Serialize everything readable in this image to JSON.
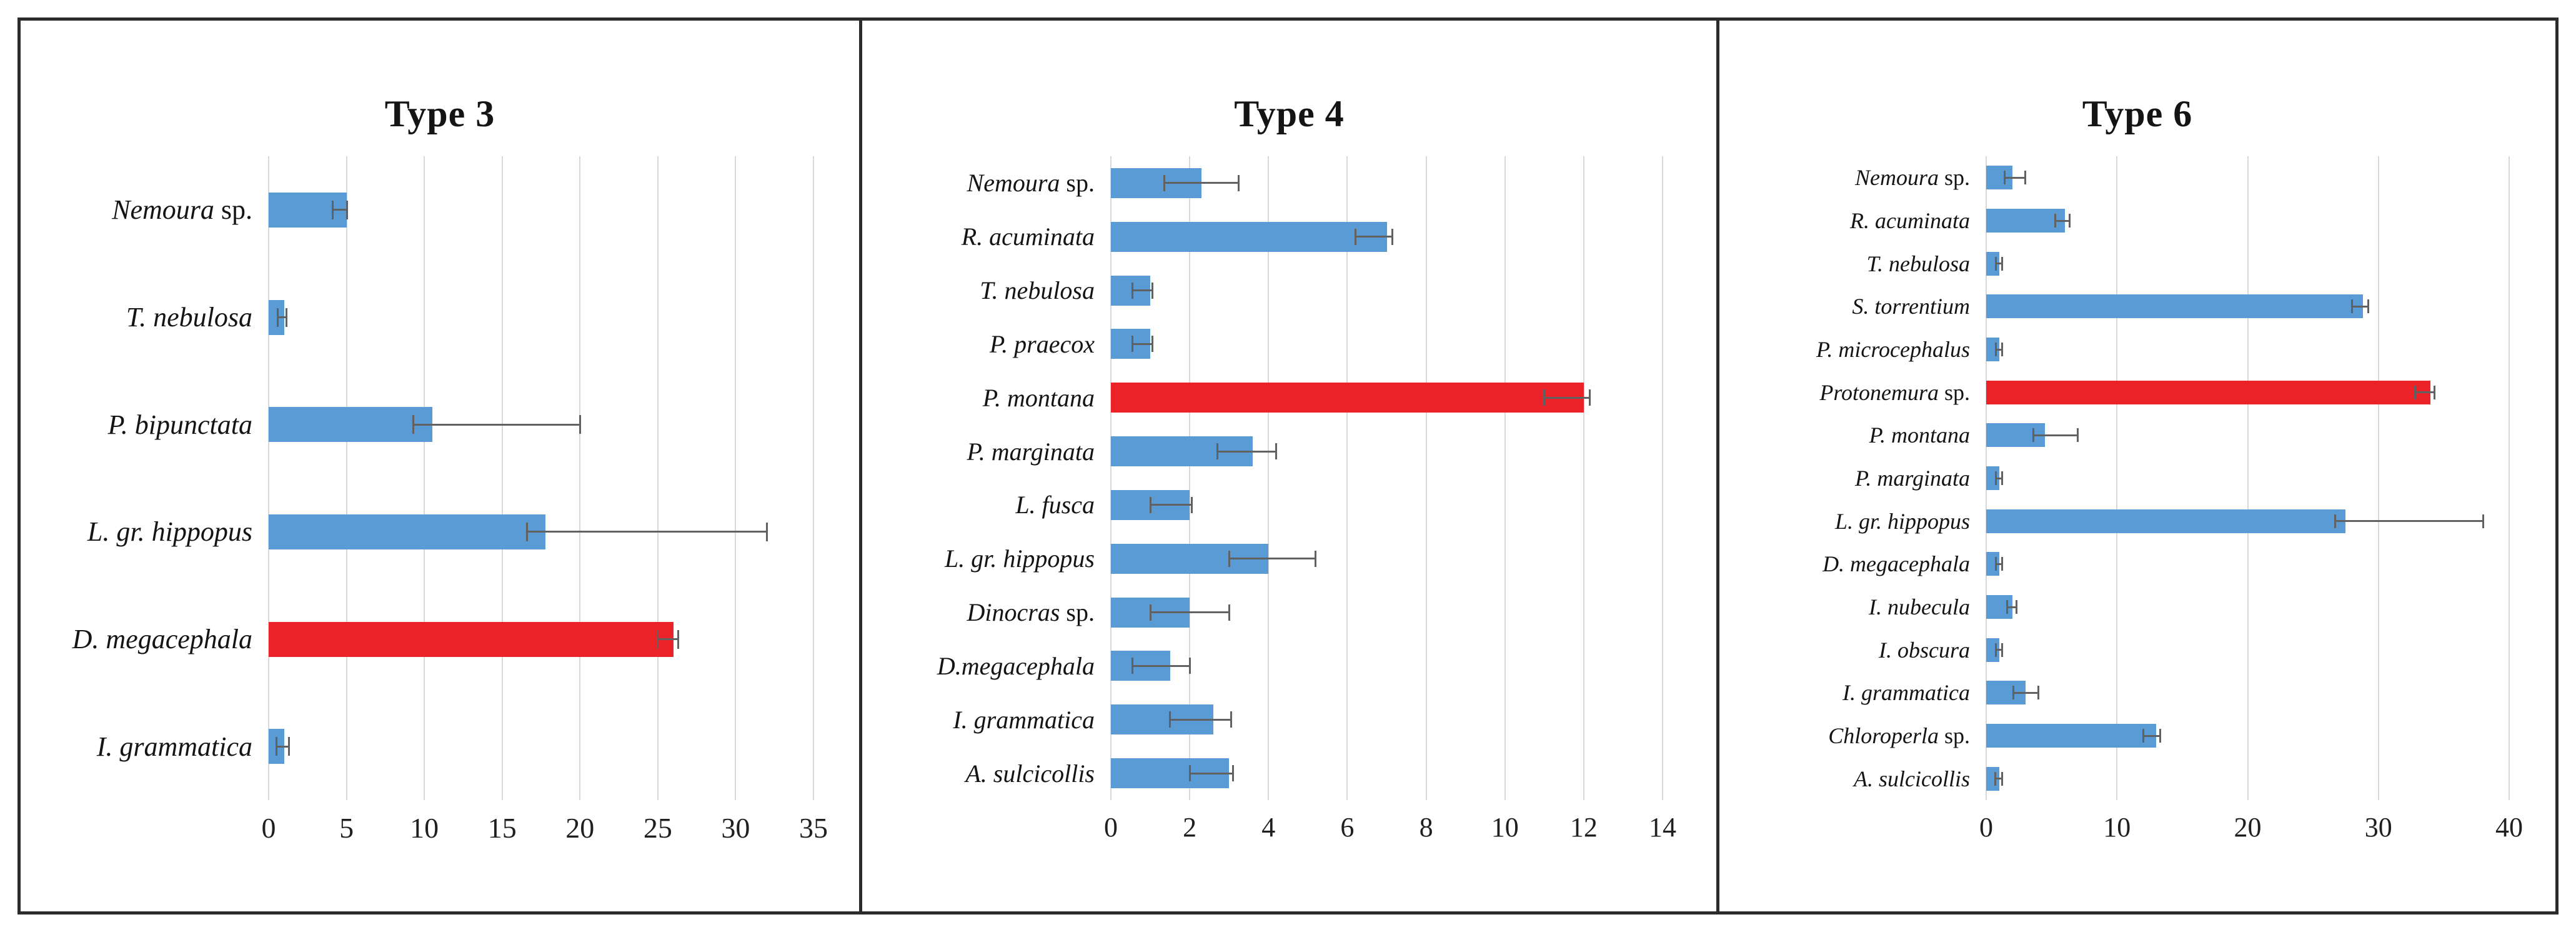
{
  "figure": {
    "colors": {
      "bar_blue": "#5B9BD5",
      "bar_red": "#EB2227",
      "gridline": "#D9D9D9",
      "error_bar": "#616161",
      "border": "#2B2B2B",
      "text": "#141414"
    }
  },
  "chart_data": [
    {
      "type": "bar",
      "orientation": "horizontal",
      "title": "Type 3",
      "bar_color": "#5B9BD5",
      "highlight_color": "#EB2227",
      "highlight_index": 4,
      "xlim": [
        0,
        35
      ],
      "xticks": [
        0,
        5,
        10,
        15,
        20,
        25,
        30,
        35
      ],
      "grid": true,
      "legend": false,
      "categories": [
        "Nemoura sp.",
        "T. nebulosa",
        "P. bipunctata",
        "L. gr. hippopus",
        "D. megacephala",
        "I. grammatica"
      ],
      "values": [
        5,
        1,
        10.5,
        17.8,
        26,
        1
      ],
      "whisker_min": [
        4.1,
        0.6,
        9.3,
        16.6,
        25,
        0.5
      ],
      "whisker_max": [
        5.05,
        1.15,
        20,
        32,
        26.3,
        1.3
      ]
    },
    {
      "type": "bar",
      "orientation": "horizontal",
      "title": "Type 4",
      "bar_color": "#5B9BD5",
      "highlight_color": "#EB2227",
      "highlight_index": 4,
      "xlim": [
        0,
        14
      ],
      "xticks": [
        0,
        2,
        4,
        6,
        8,
        10,
        12,
        14
      ],
      "grid": true,
      "legend": false,
      "categories": [
        "Nemoura sp.",
        "R. acuminata",
        "T. nebulosa",
        "P. praecox",
        "P. montana",
        "P. marginata",
        "L. fusca",
        "L. gr. hippopus",
        "Dinocras sp.",
        "D.megacephala",
        "I. grammatica",
        "A. sulcicollis"
      ],
      "values": [
        2.3,
        7,
        1,
        1,
        12,
        3.6,
        2,
        4,
        2,
        1.5,
        2.6,
        3
      ],
      "whisker_min": [
        1.35,
        6.2,
        0.55,
        0.55,
        11,
        2.7,
        1,
        3,
        1,
        0.55,
        1.5,
        2
      ],
      "whisker_max": [
        3.25,
        7.15,
        1.05,
        1.05,
        12.15,
        4.2,
        2.05,
        5.2,
        3,
        2,
        3.05,
        3.1
      ]
    },
    {
      "type": "bar",
      "orientation": "horizontal",
      "title": "Type 6",
      "bar_color": "#5B9BD5",
      "highlight_color": "#EB2227",
      "highlight_index": 5,
      "xlim": [
        0,
        40
      ],
      "xticks": [
        0,
        10,
        20,
        30,
        40
      ],
      "grid": true,
      "legend": false,
      "categories": [
        "Nemoura sp.",
        "R. acuminata",
        "T. nebulosa",
        "S. torrentium",
        "P. microcephalus",
        "Protonemura sp.",
        "P. montana",
        "P. marginata",
        "L. gr. hippopus",
        "D. megacephala",
        "I. nubecula",
        "I. obscura",
        "I. grammatica",
        "Chloroperla sp.",
        "A. sulcicollis"
      ],
      "values": [
        2,
        6,
        1,
        28.8,
        1,
        34,
        4.5,
        1,
        27.5,
        1,
        2,
        1,
        3,
        13,
        1
      ],
      "whisker_min": [
        1.4,
        5.3,
        0.75,
        28,
        0.75,
        32.8,
        3.6,
        0.75,
        26.7,
        0.75,
        1.6,
        0.75,
        2.1,
        12,
        0.7
      ],
      "whisker_max": [
        3,
        6.4,
        1.2,
        29.2,
        1.2,
        34.3,
        7,
        1.2,
        38,
        1.2,
        2.3,
        1.2,
        4,
        13.3,
        1.2
      ]
    }
  ]
}
